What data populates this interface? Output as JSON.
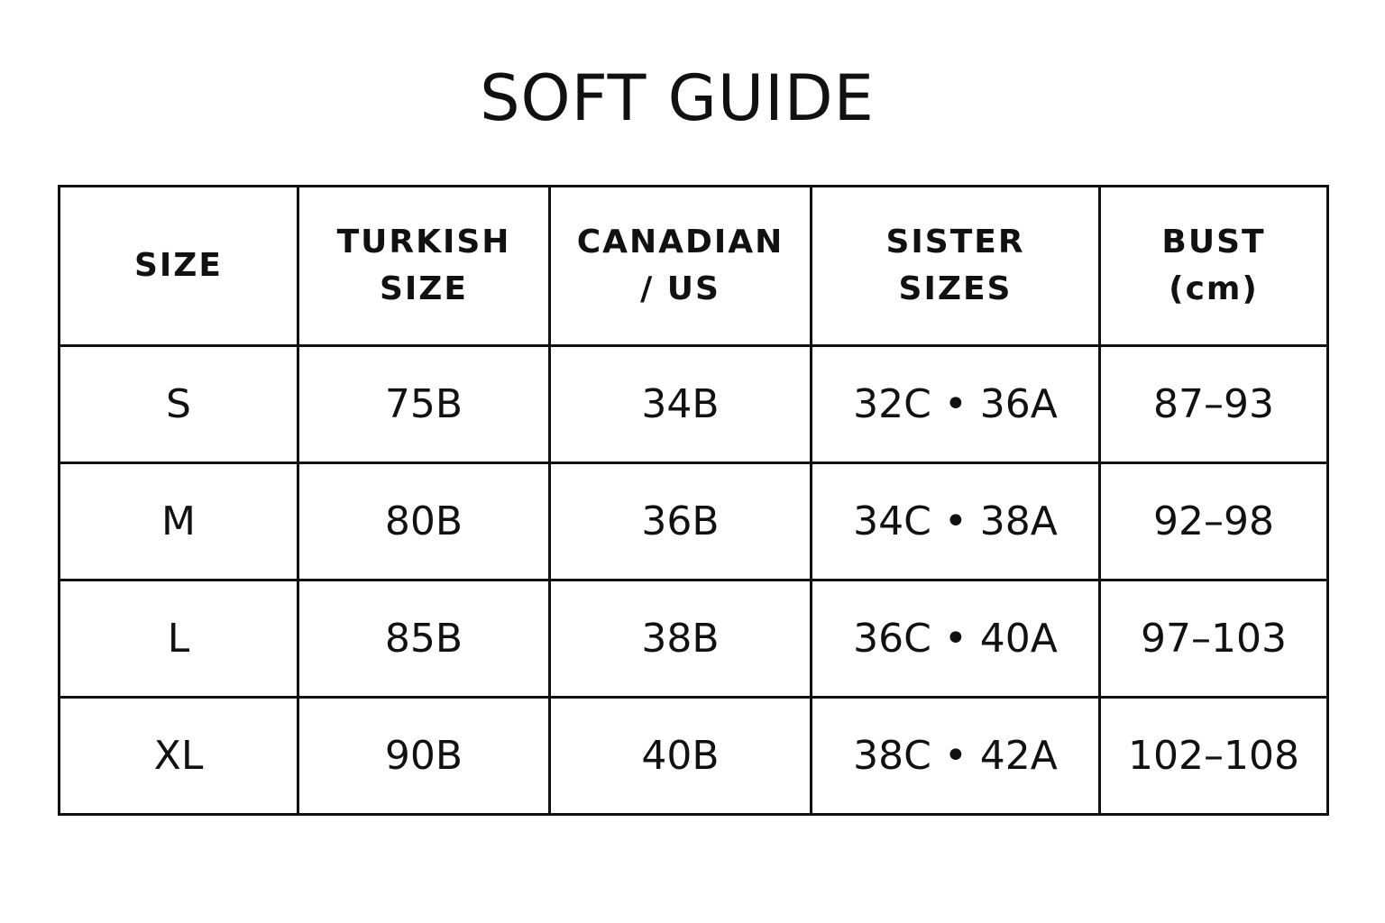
{
  "title": "SOFT GUIDE",
  "table": {
    "headers": [
      [
        "SIZE"
      ],
      [
        "TURKISH",
        "SIZE"
      ],
      [
        "CANADIAN",
        "/ US"
      ],
      [
        "SISTER",
        "SIZES"
      ],
      [
        "BUST",
        "(cm)"
      ]
    ],
    "rows": [
      [
        "S",
        "75B",
        "34B",
        "32C • 36A",
        "87–93"
      ],
      [
        "M",
        "80B",
        "36B",
        "34C • 38A",
        "92–98"
      ],
      [
        "L",
        "85B",
        "38B",
        "36C • 40A",
        "97–103"
      ],
      [
        "XL",
        "90B",
        "40B",
        "38C • 42A",
        "102–108"
      ]
    ]
  }
}
